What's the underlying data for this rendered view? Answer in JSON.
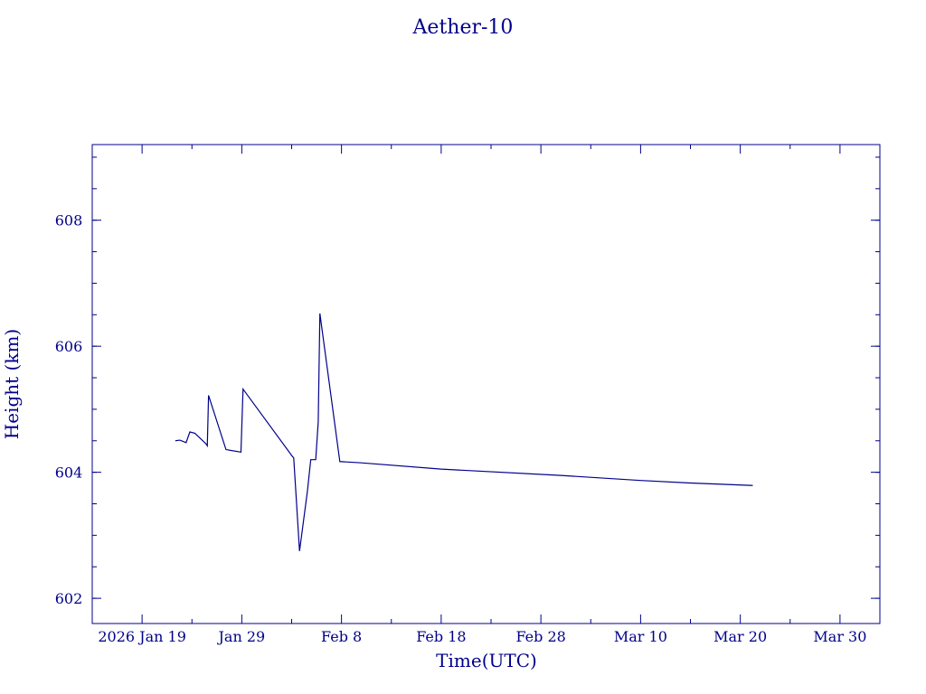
{
  "chart_data": {
    "type": "line",
    "title": "Aether-10",
    "xlabel": "Time(UTC)",
    "ylabel": "Height (km)",
    "color": "#00008b",
    "xlim": [
      "2026-01-14",
      "2026-04-03"
    ],
    "ylim": [
      601.6,
      609.2
    ],
    "x_ticks": [
      {
        "date": "2026-01-19",
        "label": "2026 Jan 19"
      },
      {
        "date": "2026-01-29",
        "label": "Jan 29"
      },
      {
        "date": "2026-02-08",
        "label": "Feb  8"
      },
      {
        "date": "2026-02-18",
        "label": "Feb 18"
      },
      {
        "date": "2026-02-28",
        "label": "Feb 28"
      },
      {
        "date": "2026-03-10",
        "label": "Mar 10"
      },
      {
        "date": "2026-03-20",
        "label": "Mar 20"
      },
      {
        "date": "2026-03-30",
        "label": "Mar 30"
      }
    ],
    "x_minor_ticks": [
      "2026-01-14",
      "2026-01-24",
      "2026-02-03",
      "2026-02-13",
      "2026-02-23",
      "2026-03-05",
      "2026-03-15",
      "2026-03-25"
    ],
    "y_ticks": [
      602,
      604,
      606,
      608
    ],
    "y_minor_step": 0.5,
    "grid": false,
    "series": [
      {
        "points": [
          [
            "2026-01-22T08:00",
            604.5
          ],
          [
            "2026-01-22T19:00",
            604.51
          ],
          [
            "2026-01-23T10:00",
            604.47
          ],
          [
            "2026-01-23T19:00",
            604.64
          ],
          [
            "2026-01-24T07:00",
            604.62
          ],
          [
            "2026-01-25T10:00",
            604.45
          ],
          [
            "2026-01-25T13:00",
            604.42
          ],
          [
            "2026-01-25T16:00",
            605.22
          ],
          [
            "2026-01-27T10:00",
            604.36
          ],
          [
            "2026-01-28T22:00",
            604.32
          ],
          [
            "2026-01-29T03:00",
            605.32
          ],
          [
            "2026-02-03T02:00",
            604.25
          ],
          [
            "2026-02-03T05:00",
            604.23
          ],
          [
            "2026-02-03T19:00",
            602.75
          ],
          [
            "2026-02-04T14:00",
            603.7
          ],
          [
            "2026-02-04T22:00",
            604.2
          ],
          [
            "2026-02-05T10:00",
            604.2
          ],
          [
            "2026-02-05T16:00",
            604.8
          ],
          [
            "2026-02-05T20:00",
            606.52
          ],
          [
            "2026-02-07T20:00",
            604.17
          ],
          [
            "2026-02-10T00:00",
            604.15
          ],
          [
            "2026-02-18T00:00",
            604.05
          ],
          [
            "2026-03-02T00:00",
            603.95
          ],
          [
            "2026-03-10T00:00",
            603.87
          ],
          [
            "2026-03-15T00:00",
            603.83
          ],
          [
            "2026-03-21T06:00",
            603.79
          ]
        ]
      }
    ]
  }
}
